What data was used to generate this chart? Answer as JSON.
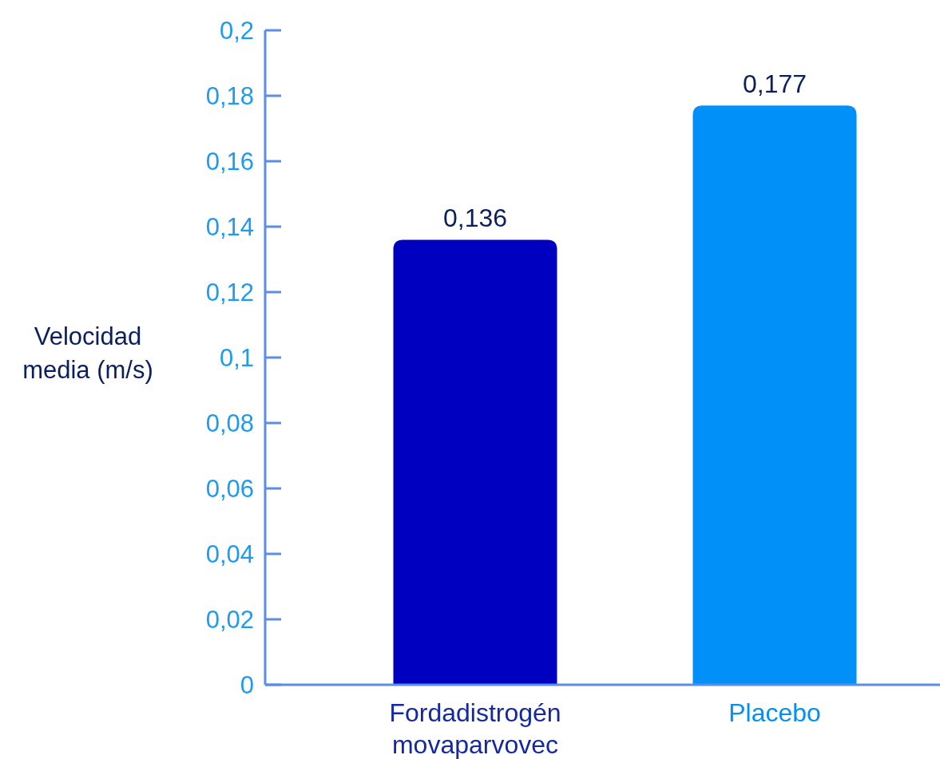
{
  "chart_data": {
    "type": "bar",
    "ylabel": "Velocidad media (m/s)",
    "categories": [
      "Fordadistrogén movaparvovec",
      "Placebo"
    ],
    "values": [
      0.136,
      0.177
    ],
    "colors": [
      "#0000c0",
      "#0090f8"
    ],
    "value_labels": [
      "0,136",
      "0,177"
    ],
    "ylim": [
      0,
      0.2
    ],
    "yticks": [
      0,
      {
        "value": 0.02,
        "label": "0,02"
      },
      {
        "value": 0.04,
        "label": "0,04"
      },
      {
        "value": 0.06,
        "label": "0,06"
      },
      {
        "value": 0.08,
        "label": "0,08"
      },
      {
        "value": 0.1,
        "label": "0,1"
      },
      {
        "value": 0.12,
        "label": "0,12"
      },
      {
        "value": 0.14,
        "label": "0,14"
      },
      {
        "value": 0.16,
        "label": "0,16"
      },
      {
        "value": 0.18,
        "label": "0,18"
      },
      {
        "value": 0.2,
        "label": "0,2"
      }
    ],
    "grid": false
  }
}
